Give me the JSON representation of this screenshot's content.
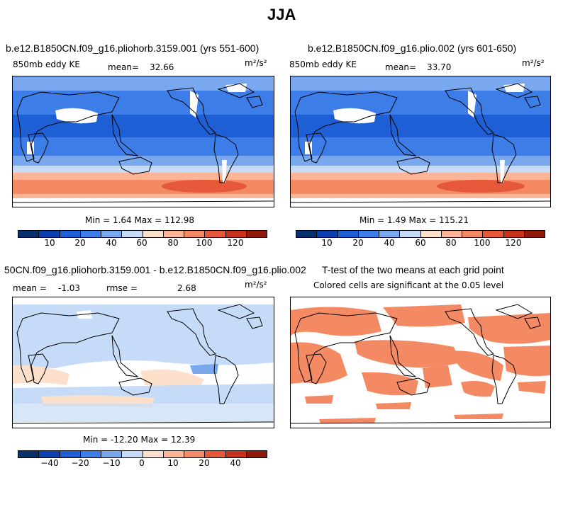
{
  "page_title": "JJA",
  "palette": [
    "#08306b",
    "#0b3fb0",
    "#1f5fd6",
    "#3d7de8",
    "#79a8ee",
    "#c6dbf7",
    "#fde0cc",
    "#fbb495",
    "#f48a63",
    "#e5593a",
    "#c6321c",
    "#8f1a0c"
  ],
  "panels": [
    {
      "id": "panel-pliohorb",
      "title": "b.e12.B1850CN.f09_g16.pliohorb.3159.001 (yrs 551-600)",
      "variable": "850mb eddy KE",
      "stat_label": "mean=",
      "stat_value": "32.66",
      "units": "m²/s²",
      "minmax": "Min =    1.64 Max =  112.98",
      "colorbar_ticks": [
        "10",
        "20",
        "40",
        "60",
        "80",
        "100",
        "120"
      ]
    },
    {
      "id": "panel-plio",
      "title": "b.e12.B1850CN.f09_g16.plio.002 (yrs 601-650)",
      "variable": "850mb eddy KE",
      "stat_label": "mean=",
      "stat_value": "33.70",
      "units": "m²/s²",
      "minmax": "Min =    1.49 Max =  115.21",
      "colorbar_ticks": [
        "10",
        "20",
        "40",
        "60",
        "80",
        "100",
        "120"
      ]
    },
    {
      "id": "panel-diff",
      "title": "50CN.f09_g16.pliohorb.3159.001 - b.e12.B1850CN.f09_g16.plio.002",
      "stat_label": "mean =",
      "stat_value": "-1.03",
      "rmse_label": "rmse =",
      "rmse_value": "2.68",
      "units": "m²/s²",
      "minmax": "Min = -12.20 Max =   12.39",
      "colorbar_ticks": [
        "−40",
        "−20",
        "−10",
        "0",
        "10",
        "20",
        "40"
      ]
    },
    {
      "id": "panel-ttest",
      "title": "T-test of the two means at each grid point",
      "subtitle": "Colored cells are significant at the 0.05 level"
    }
  ]
}
